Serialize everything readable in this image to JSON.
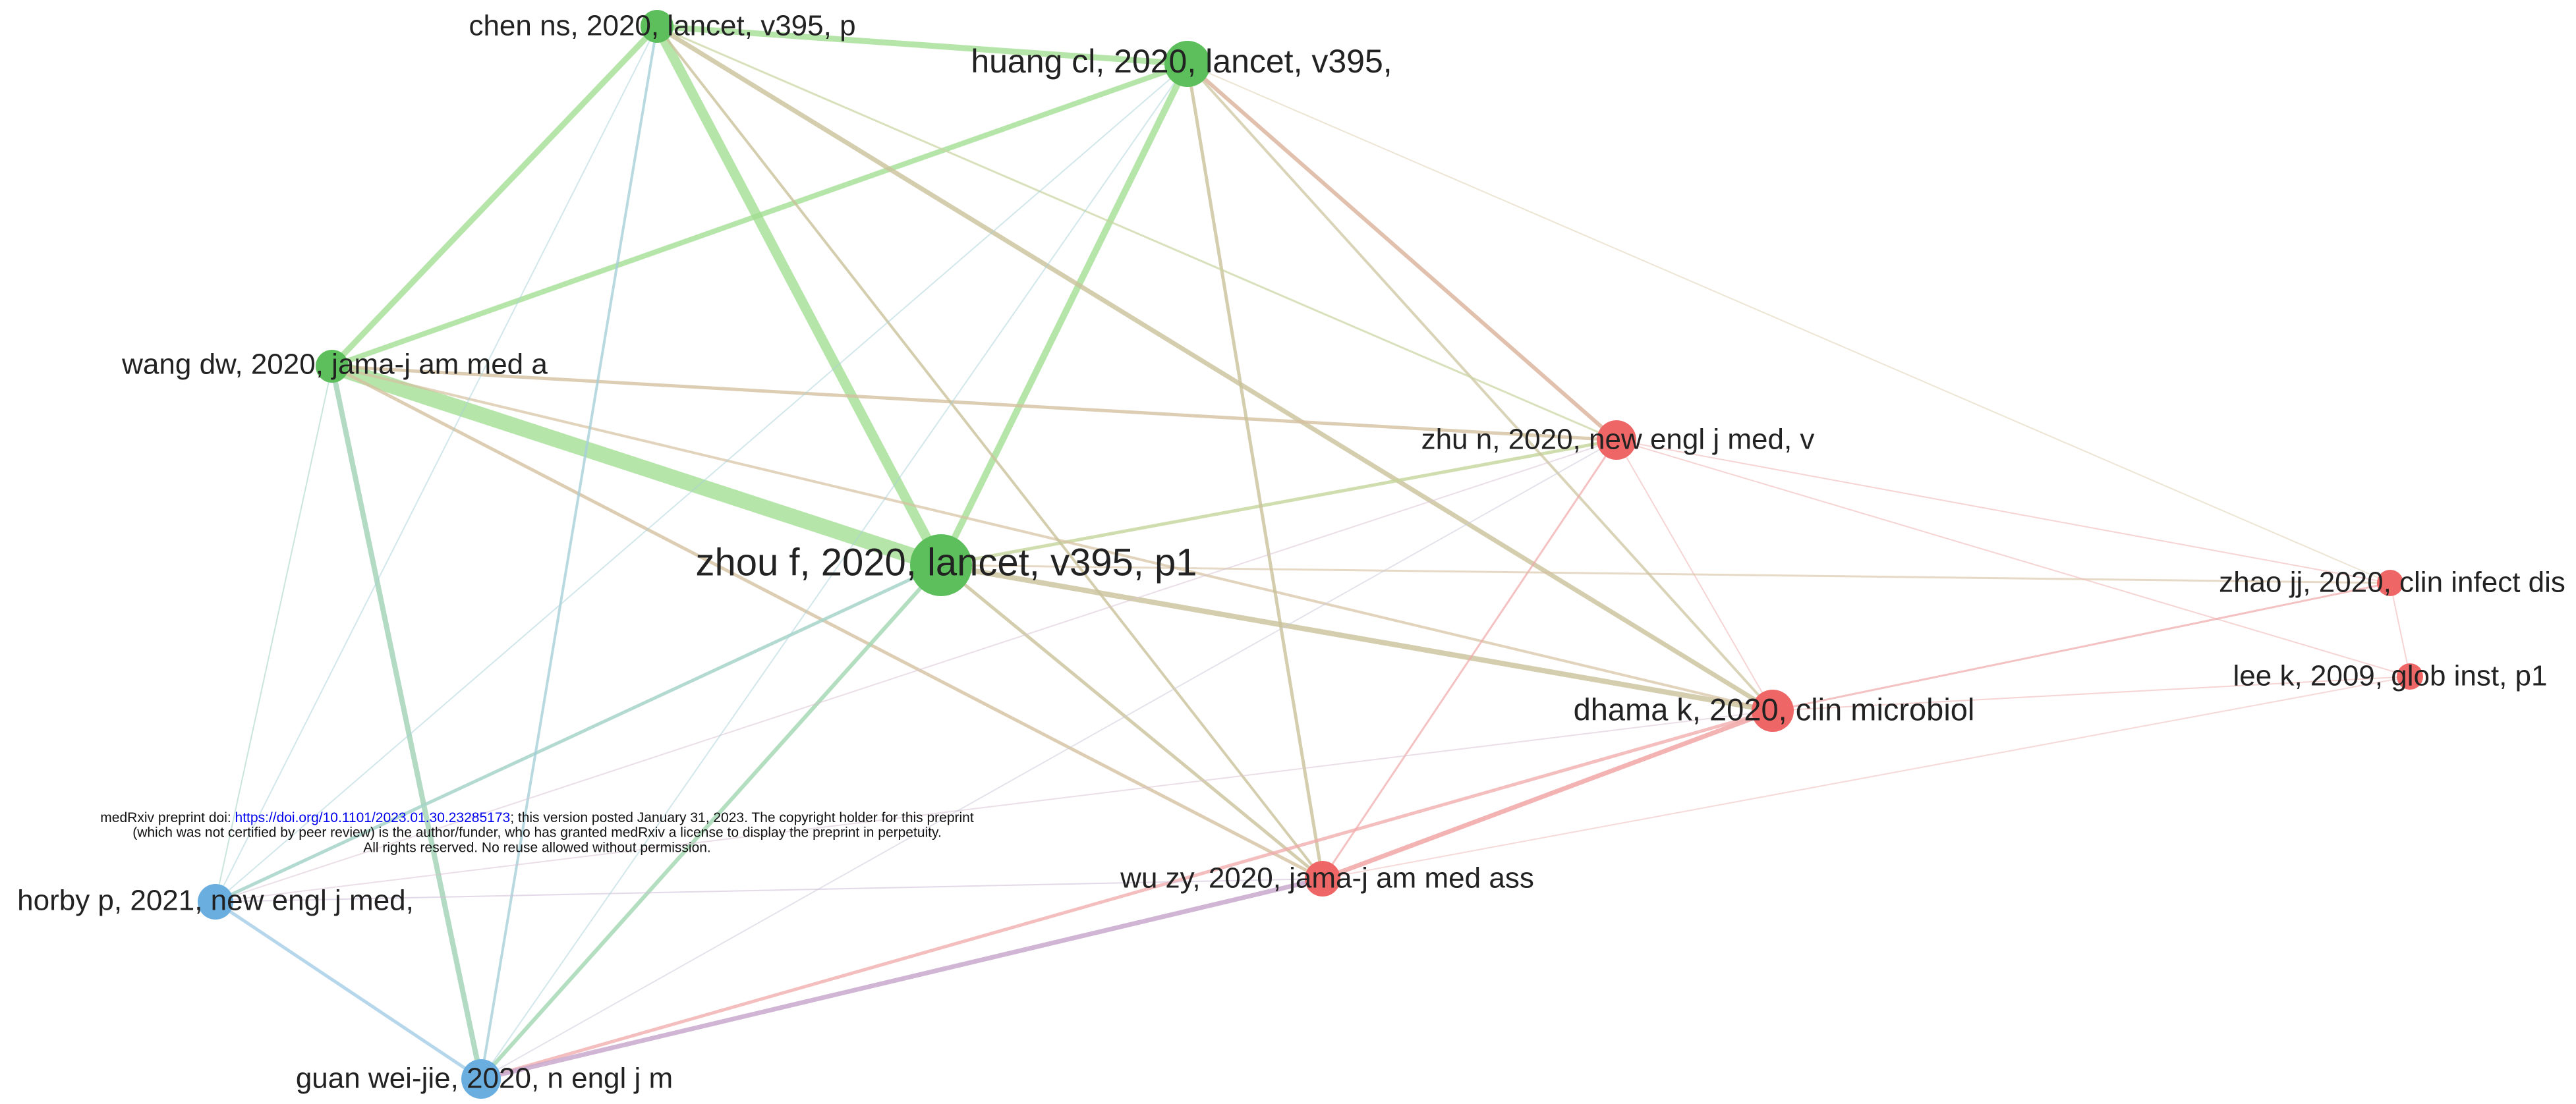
{
  "nodes": [
    {
      "label": "chen ns, 2020, lancet, v395, p"
    },
    {
      "label": "huang cl, 2020, lancet, v395,"
    },
    {
      "label": "wang dw, 2020, jama-j am med a"
    },
    {
      "label": "zhou f, 2020, lancet, v395, p1"
    },
    {
      "label": "zhu n, 2020, new engl j med, v"
    },
    {
      "label": "zhao jj, 2020, clin infect dis"
    },
    {
      "label": "lee k, 2009, glob inst, p1"
    },
    {
      "label": "dhama k, 2020, clin microbiol"
    },
    {
      "label": "wu zy, 2020, jama-j am med ass"
    },
    {
      "label": "horby p, 2021, new engl j med,"
    },
    {
      "label": "guan wei-jie, 2020, n engl j m"
    }
  ],
  "notice": {
    "line1_prefix": "medRxiv preprint doi: ",
    "link": "https://doi.org/10.1101/2023.01.30.23285173",
    "line1_suffix": "; this version posted January 31, 2023. The copyright holder for this preprint",
    "line2": "(which was not certified by peer review) is the author/funder, who has granted medRxiv a license to display the preprint in perpetuity.",
    "line3": "All rights reserved. No reuse allowed without permission."
  }
}
